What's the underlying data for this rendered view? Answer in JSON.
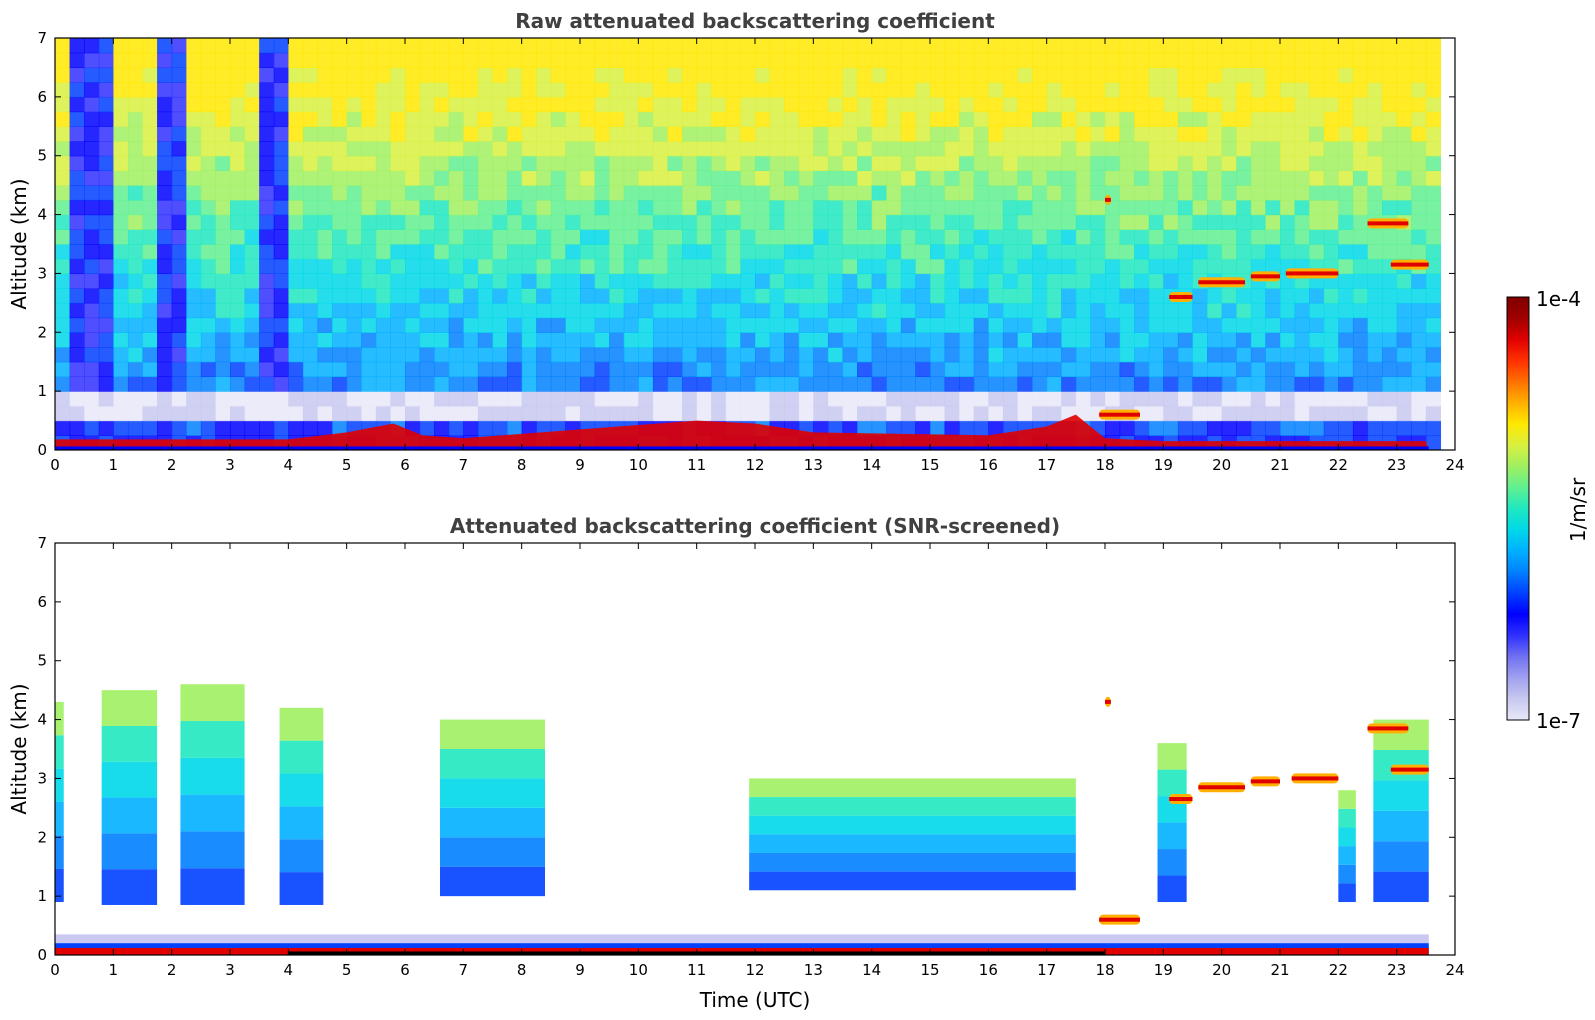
{
  "chart_data": [
    {
      "type": "heatmap",
      "title": "Raw attenuated backscattering coefficient",
      "ylabel": "Altitude (km)",
      "xlabel": "",
      "xlim": [
        0,
        24
      ],
      "ylim": [
        0,
        7
      ],
      "x_ticks": [
        "0",
        "1",
        "2",
        "3",
        "4",
        "5",
        "6",
        "7",
        "8",
        "9",
        "10",
        "11",
        "12",
        "13",
        "14",
        "15",
        "16",
        "17",
        "18",
        "19",
        "20",
        "21",
        "22",
        "23",
        "24"
      ],
      "y_ticks": [
        "0",
        "1",
        "2",
        "3",
        "4",
        "5",
        "6",
        "7"
      ],
      "data_end_hour": 23.55,
      "features": {
        "surface_layer_top_km": [
          [
            0,
            0.18
          ],
          [
            4,
            0.18
          ],
          [
            5,
            0.3
          ],
          [
            5.8,
            0.45
          ],
          [
            6.3,
            0.25
          ],
          [
            7,
            0.2
          ],
          [
            9,
            0.35
          ],
          [
            11,
            0.5
          ],
          [
            12,
            0.45
          ],
          [
            13,
            0.3
          ],
          [
            16,
            0.25
          ],
          [
            17,
            0.4
          ],
          [
            17.5,
            0.6
          ],
          [
            18,
            0.2
          ],
          [
            19,
            0.15
          ],
          [
            23.5,
            0.15
          ]
        ],
        "cloud_layers": [
          {
            "start_h": 19.1,
            "end_h": 19.5,
            "alt_km": 2.6
          },
          {
            "start_h": 19.6,
            "end_h": 20.4,
            "alt_km": 2.85
          },
          {
            "start_h": 20.5,
            "end_h": 21.0,
            "alt_km": 2.95
          },
          {
            "start_h": 21.1,
            "end_h": 22.0,
            "alt_km": 3.0
          },
          {
            "start_h": 22.5,
            "end_h": 23.2,
            "alt_km": 3.85
          },
          {
            "start_h": 22.9,
            "end_h": 23.55,
            "alt_km": 3.15
          },
          {
            "start_h": 18.0,
            "end_h": 18.1,
            "alt_km": 4.25
          },
          {
            "start_h": 17.9,
            "end_h": 18.6,
            "alt_km": 0.6
          }
        ],
        "noise_gaps_h": [
          [
            0.2,
            0.8
          ],
          [
            1.7,
            2.1
          ],
          [
            3.3,
            3.9
          ]
        ]
      }
    },
    {
      "type": "heatmap",
      "title": "Attenuated backscattering coefficient (SNR-screened)",
      "ylabel": "Altitude (km)",
      "xlabel": "Time (UTC)",
      "xlim": [
        0,
        24
      ],
      "ylim": [
        0,
        7
      ],
      "x_ticks": [
        "0",
        "1",
        "2",
        "3",
        "4",
        "5",
        "6",
        "7",
        "8",
        "9",
        "10",
        "11",
        "12",
        "13",
        "14",
        "15",
        "16",
        "17",
        "18",
        "19",
        "20",
        "21",
        "22",
        "23",
        "24"
      ],
      "y_ticks": [
        "0",
        "1",
        "2",
        "3",
        "4",
        "5",
        "6",
        "7"
      ],
      "data_end_hour": 23.55,
      "features": {
        "aerosol_patches": [
          {
            "start_h": 0.0,
            "end_h": 0.15,
            "bottom_km": 0.9,
            "top_km": 4.3
          },
          {
            "start_h": 0.8,
            "end_h": 1.75,
            "bottom_km": 0.85,
            "top_km": 4.5
          },
          {
            "start_h": 2.15,
            "end_h": 3.25,
            "bottom_km": 0.85,
            "top_km": 4.6
          },
          {
            "start_h": 3.85,
            "end_h": 4.6,
            "bottom_km": 0.85,
            "top_km": 4.2
          },
          {
            "start_h": 6.6,
            "end_h": 8.4,
            "bottom_km": 1.0,
            "top_km": 4.0
          },
          {
            "start_h": 11.9,
            "end_h": 17.5,
            "bottom_km": 1.1,
            "top_km": 3.0
          },
          {
            "start_h": 18.9,
            "end_h": 19.4,
            "bottom_km": 0.9,
            "top_km": 3.6
          },
          {
            "start_h": 22.0,
            "end_h": 22.3,
            "bottom_km": 0.9,
            "top_km": 2.8
          },
          {
            "start_h": 22.6,
            "end_h": 23.55,
            "bottom_km": 0.9,
            "top_km": 4.0
          }
        ],
        "cloud_layers": [
          {
            "start_h": 19.1,
            "end_h": 19.5,
            "alt_km": 2.65
          },
          {
            "start_h": 19.6,
            "end_h": 20.4,
            "alt_km": 2.85
          },
          {
            "start_h": 20.5,
            "end_h": 21.0,
            "alt_km": 2.95
          },
          {
            "start_h": 21.2,
            "end_h": 22.0,
            "alt_km": 3.0
          },
          {
            "start_h": 22.5,
            "end_h": 23.2,
            "alt_km": 3.85
          },
          {
            "start_h": 22.9,
            "end_h": 23.55,
            "alt_km": 3.15
          },
          {
            "start_h": 18.0,
            "end_h": 18.1,
            "alt_km": 4.3
          },
          {
            "start_h": 17.9,
            "end_h": 18.6,
            "alt_km": 0.6
          }
        ]
      }
    }
  ],
  "colorbar": {
    "label": "1/m/sr",
    "max_label": "1e-4",
    "min_label": "1e-7",
    "colors": [
      "#e8e8f8",
      "#c8c8f0",
      "#a0a0f0",
      "#7070f0",
      "#3030ff",
      "#0000ff",
      "#0040ff",
      "#0080ff",
      "#00b0ff",
      "#00d8e8",
      "#20e8c0",
      "#60f090",
      "#a0f060",
      "#d8f040",
      "#ffe800",
      "#ffb000",
      "#ff7000",
      "#ff3000",
      "#e00000",
      "#a00000",
      "#800000"
    ]
  }
}
